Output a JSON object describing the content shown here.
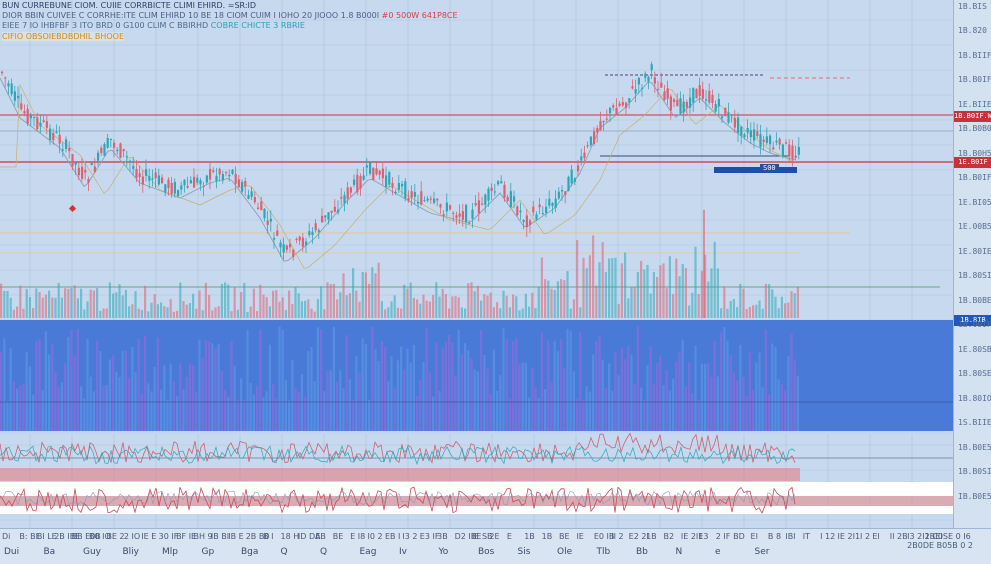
{
  "legend": {
    "line1": "BUN CURREBUNE CIOM. CUIIE CORRBICTE CLIMI EHIRD. =SR:ID",
    "line2_left": "DIOR BBIN CUIVEE C CORRHE:ITE CLIM EHIRD 10 BE 18 CIOM CUIM I IOHO 20 JIOOO 1.8 B000I",
    "line2_right": "#0 500W 641P8CE",
    "line3_left": "EIEE 7 IO IHBFBF 3 ITO BRD 0 G100 CLIM C BBIRHD",
    "line3_right": "COBRE CHICTE 3 RBRIE",
    "line4": "CIFIO OBSOIEBDBDHIL BHOOE"
  },
  "price_axis": {
    "ticks": [
      "1B.BIS",
      "1B.820",
      "1B.BIIF",
      "1B.B0IF",
      "1E.BIIE",
      "1B.B0B0",
      "1B.B0H5",
      "1B.B0IF",
      "1E.BI05",
      "1E.00B5",
      "1E.80IE",
      "1B.80SI",
      "1B.B0BE",
      "1B.00IF",
      "1E.80SB",
      "1B.80SE",
      "1B.80IO",
      "1S.BIIE",
      "1B.B0E5",
      "1B.B0SI",
      "IB.B0E5"
    ],
    "tag_top": "1B.B0IF.W",
    "tag_mid": "1E.B0IF",
    "tag_vol": "1B.8IB"
  },
  "time_axis": {
    "row1": [
      "Di",
      "B: BE",
      "BI LE",
      "2B IBE",
      "BB E0B",
      "B0 IO",
      "BE 2",
      "2 IO",
      "IE E",
      "30 IF",
      "BF IE",
      "BH 9",
      "IB BI",
      "IB E",
      "2B B0",
      "B I",
      "18 H",
      "ID DA",
      "EB",
      "BE",
      "E I8",
      "I0 2",
      "EB I",
      "I3 2",
      "E3 IF",
      "3B",
      "D2 IBE",
      "IE SB",
      "2E",
      "E",
      "1B",
      "1B",
      "BE",
      "IE",
      "E0 IB",
      "II 2",
      "E2 2I",
      "1B",
      "B2",
      "IE 2IE",
      "13",
      "2 IF",
      "BD",
      "EI",
      "B 8",
      "IBI",
      "IT",
      "I 12",
      "IE 2I",
      "1I 2",
      "EI",
      "II 2B",
      "I3 2I1 C0SE 0 I6 2B0DE B05B 0 2",
      "2BEI"
    ],
    "row2": [
      "Dui",
      "Ba",
      "Guy",
      "Bliy",
      "Mlp",
      "Gp",
      "Bga",
      "Q",
      "Q",
      "Eag",
      "Iv",
      "Yo",
      "Bos",
      "Sis",
      "Ole",
      "Tlb",
      "Bb",
      "N",
      "e",
      "Ser"
    ]
  },
  "overlay_label": "S00",
  "colors": {
    "up": "#2aa8b8",
    "down": "#e06070",
    "resistance": "#d0303a",
    "volume_pane": "#4a7ad8",
    "accent": "#1d4fa8"
  }
}
